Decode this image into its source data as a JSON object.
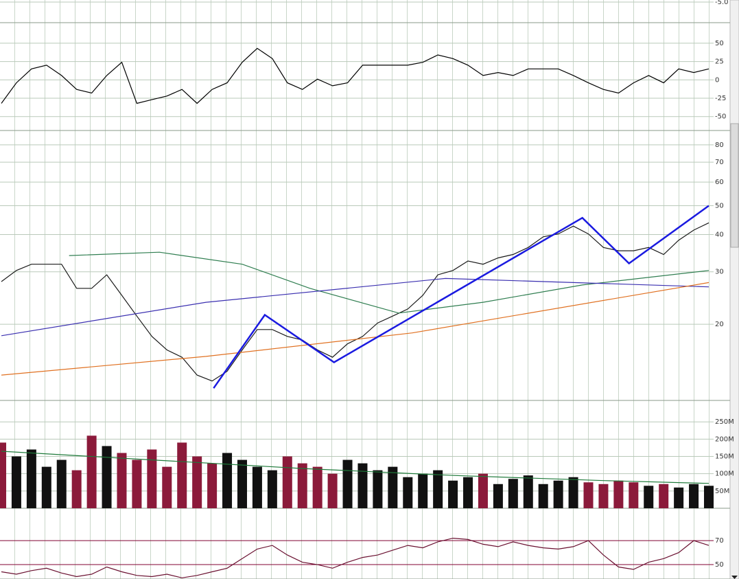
{
  "chart_data": [
    {
      "type": "line",
      "ylim": [
        -6.0,
        -4.9
      ],
      "yticks": [
        {
          "value": -5,
          "label": "-5.0"
        }
      ],
      "grid": true
    },
    {
      "type": "line",
      "ylim": [
        -69,
        78
      ],
      "yticks": [
        50,
        25,
        0,
        -25,
        -50
      ],
      "grid": true,
      "series": [
        {
          "color": "#000000",
          "values": [
            -32,
            -4,
            15,
            20,
            6,
            -13,
            -18,
            6,
            24,
            -32,
            -27,
            -22,
            -13,
            -32,
            -13,
            -4,
            24,
            43,
            29,
            -4,
            -13,
            1,
            -8,
            -4,
            20,
            20,
            20,
            20,
            24,
            34,
            29,
            20,
            6,
            10,
            6,
            15,
            15,
            15,
            6,
            -4,
            -13,
            -18,
            -4,
            6,
            -4,
            15,
            10,
            15
          ]
        }
      ]
    },
    {
      "type": "line",
      "log_scale": true,
      "ylim": [
        11.1,
        89.4
      ],
      "yticks": [
        80,
        70,
        60,
        50,
        40,
        30,
        20
      ],
      "grid": true,
      "series": [
        {
          "color": "#1a1a1a",
          "values": [
            27.8,
            30.3,
            31.8,
            31.8,
            31.8,
            26.4,
            26.4,
            29.3,
            25.0,
            21.3,
            18.2,
            16.4,
            15.5,
            13.5,
            12.9,
            13.9,
            16.4,
            19.2,
            19.2,
            18.2,
            17.7,
            16.4,
            15.5,
            17.2,
            18.2,
            20.2,
            21.3,
            22.5,
            25.0,
            29.3,
            30.3,
            32.6,
            31.8,
            33.4,
            34.3,
            36.2,
            39.3,
            40.2,
            42.7,
            40.2,
            36.2,
            35.3,
            35.3,
            36.2,
            34.3,
            38.3,
            41.4,
            43.8
          ]
        },
        {
          "color": "#2e7d4f",
          "x": [
            4.5,
            10.5,
            16,
            20.5,
            26.4,
            32,
            38.6,
            47
          ],
          "values": [
            34.0,
            34.9,
            31.8,
            26.4,
            21.8,
            23.7,
            27.1,
            30.3
          ]
        },
        {
          "color": "#3a2fb0",
          "x": [
            0,
            13.6,
            29.5,
            47
          ],
          "values": [
            18.3,
            23.7,
            28.5,
            26.7
          ]
        },
        {
          "color": "#e07020",
          "x": [
            0,
            13.6,
            27.3,
            47
          ],
          "values": [
            13.5,
            15.6,
            18.7,
            27.6
          ]
        },
        {
          "color": "#1a1ae0",
          "width": 2.5,
          "x": [
            14.1,
            17.5,
            22.1,
            38.6,
            41.7,
            47
          ],
          "values": [
            12.2,
            21.5,
            14.9,
            45.5,
            32,
            50
          ]
        }
      ]
    },
    {
      "type": "bar",
      "ylim": [
        0,
        312000000
      ],
      "grid": true,
      "yticks": [
        {
          "value": 250000000,
          "label": "250M"
        },
        {
          "value": 200000000,
          "label": "200M"
        },
        {
          "value": 150000000,
          "label": "150M"
        },
        {
          "value": 100000000,
          "label": "100M"
        },
        {
          "value": 50000000,
          "label": "50M"
        }
      ],
      "values": [
        190000000,
        150000000,
        170000000,
        120000000,
        140000000,
        110000000,
        210000000,
        180000000,
        160000000,
        140000000,
        170000000,
        120000000,
        190000000,
        150000000,
        130000000,
        160000000,
        140000000,
        120000000,
        110000000,
        150000000,
        130000000,
        120000000,
        100000000,
        140000000,
        130000000,
        110000000,
        120000000,
        90000000,
        100000000,
        110000000,
        80000000,
        90000000,
        100000000,
        70000000,
        85000000,
        95000000,
        70000000,
        80000000,
        90000000,
        75000000,
        70000000,
        80000000,
        75000000,
        65000000,
        70000000,
        60000000,
        70000000,
        65000000
      ],
      "colors": [
        "#8b1a3a",
        "#111111",
        "#111111",
        "#111111",
        "#111111",
        "#8b1a3a",
        "#8b1a3a",
        "#111111",
        "#8b1a3a",
        "#8b1a3a",
        "#8b1a3a",
        "#8b1a3a",
        "#8b1a3a",
        "#8b1a3a",
        "#8b1a3a",
        "#111111",
        "#111111",
        "#111111",
        "#111111",
        "#8b1a3a",
        "#8b1a3a",
        "#8b1a3a",
        "#8b1a3a",
        "#111111",
        "#111111",
        "#111111",
        "#111111",
        "#111111",
        "#111111",
        "#111111",
        "#111111",
        "#111111",
        "#8b1a3a",
        "#111111",
        "#111111",
        "#111111",
        "#111111",
        "#111111",
        "#111111",
        "#8b1a3a",
        "#8b1a3a",
        "#8b1a3a",
        "#8b1a3a",
        "#111111",
        "#8b1a3a",
        "#111111",
        "#111111",
        "#111111"
      ],
      "series": [
        {
          "color": "#1e7a3a",
          "x": [
            0,
            10,
            20,
            30,
            40,
            47
          ],
          "values": [
            165000000,
            140000000,
            115000000,
            95000000,
            80000000,
            72000000
          ]
        }
      ]
    },
    {
      "type": "line",
      "ylim": [
        38,
        97
      ],
      "yticks": [
        70,
        50
      ],
      "grid": true,
      "grid_color": "#800030",
      "series": [
        {
          "color": "#6a1030",
          "values": [
            44,
            42,
            45,
            47,
            43,
            40,
            42,
            48,
            44,
            41,
            40,
            42,
            39,
            41,
            44,
            47,
            55,
            63,
            66,
            58,
            52,
            50,
            47,
            52,
            56,
            58,
            62,
            66,
            64,
            69,
            72,
            71,
            67,
            65,
            69,
            66,
            64,
            63,
            65,
            70,
            58,
            48,
            46,
            52,
            55,
            60,
            70,
            66
          ]
        }
      ]
    }
  ]
}
